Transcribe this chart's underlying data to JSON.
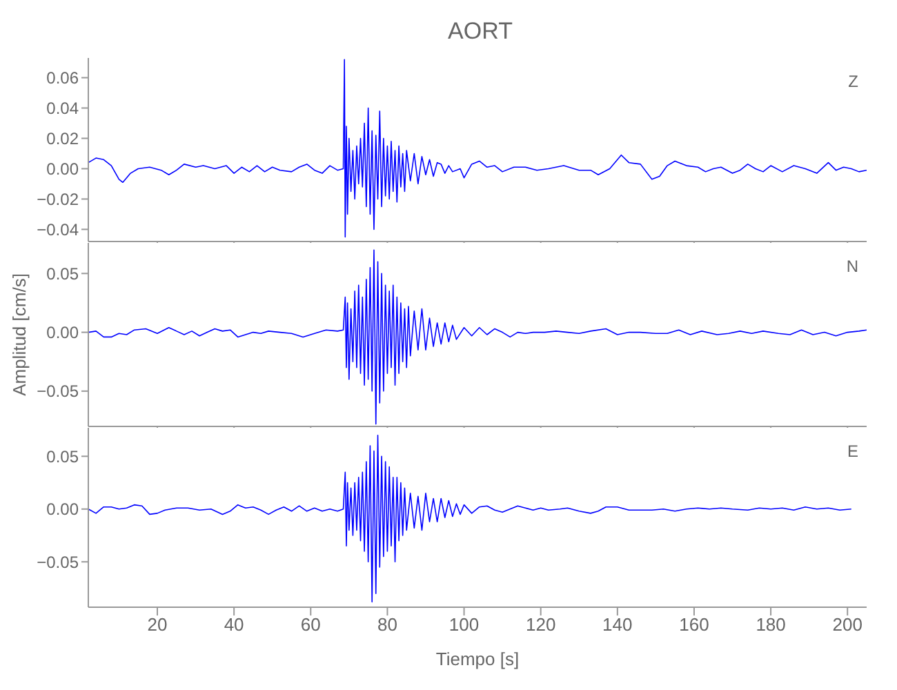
{
  "chart_data": [
    {
      "type": "line",
      "title": "AORT",
      "annotations": [
        "Z"
      ],
      "color": "#0000ff",
      "xlim": [
        2,
        205
      ],
      "xticks": [
        20,
        40,
        60,
        80,
        100,
        120,
        140,
        160,
        180,
        200
      ],
      "ylim": [
        -0.048,
        0.073
      ],
      "yticks": [
        {
          "value": -0.04,
          "label": "−0.04"
        },
        {
          "value": -0.02,
          "label": "−0.02"
        },
        {
          "value": 0,
          "label": "0.00"
        },
        {
          "value": 0.02,
          "label": "0.02"
        },
        {
          "value": 0.04,
          "label": "0.04"
        },
        {
          "value": 0.06,
          "label": "0.06"
        }
      ],
      "tick_labels": "y",
      "grid": false,
      "x": [
        2,
        4,
        6,
        8,
        10,
        11,
        13,
        15,
        18,
        21,
        23,
        25,
        27,
        30,
        32,
        35,
        38,
        40,
        42,
        44,
        46,
        48,
        50,
        52,
        55,
        57,
        59,
        61,
        63,
        65,
        67,
        68.5,
        68.8,
        69,
        69.3,
        69.6,
        70,
        70.5,
        71,
        71.5,
        72,
        72.5,
        73,
        73.5,
        74,
        74.5,
        75,
        75.5,
        76,
        76.5,
        77,
        77.5,
        78,
        78.5,
        79,
        79.5,
        80,
        80.5,
        81,
        81.5,
        82,
        82.5,
        83,
        83.5,
        84,
        84.5,
        85,
        86,
        87,
        88,
        89,
        90,
        91,
        92,
        93,
        94,
        95,
        96,
        97,
        99,
        100,
        102,
        104,
        106,
        108,
        110,
        113,
        116,
        119,
        122,
        126,
        130,
        133,
        135,
        138,
        141,
        143,
        146,
        149,
        151,
        153,
        155,
        158,
        161,
        163,
        165,
        167,
        170,
        172,
        174,
        176,
        178,
        180,
        183,
        186,
        189,
        192,
        195,
        197,
        199,
        201,
        203,
        205
      ],
      "values": [
        0.004,
        0.007,
        0.006,
        0.002,
        -0.007,
        -0.009,
        -0.003,
        0.0,
        0.001,
        -0.001,
        -0.004,
        -0.001,
        0.003,
        0.001,
        0.002,
        0.0,
        0.002,
        -0.003,
        0.001,
        -0.002,
        0.002,
        -0.002,
        0.001,
        -0.001,
        -0.002,
        0.001,
        0.003,
        -0.001,
        -0.003,
        0.002,
        -0.001,
        0.0,
        0.072,
        -0.045,
        0.028,
        -0.03,
        0.02,
        -0.015,
        0.012,
        -0.02,
        0.015,
        -0.01,
        0.02,
        -0.012,
        0.03,
        -0.025,
        0.04,
        -0.03,
        0.025,
        -0.04,
        0.022,
        -0.02,
        0.038,
        -0.025,
        0.02,
        -0.018,
        0.015,
        -0.02,
        0.018,
        -0.015,
        0.012,
        -0.022,
        0.015,
        -0.012,
        0.01,
        -0.015,
        0.012,
        -0.008,
        0.01,
        -0.01,
        0.008,
        -0.004,
        0.006,
        -0.005,
        0.004,
        0.003,
        -0.003,
        0.002,
        -0.002,
        0.0,
        -0.006,
        0.003,
        0.005,
        0.001,
        0.002,
        -0.002,
        0.001,
        0.001,
        -0.001,
        0.0,
        0.002,
        -0.001,
        -0.001,
        -0.004,
        0.0,
        0.009,
        0.004,
        0.003,
        -0.007,
        -0.005,
        0.002,
        0.005,
        0.002,
        0.001,
        -0.002,
        0.0,
        0.001,
        -0.003,
        -0.001,
        0.003,
        0.0,
        -0.002,
        0.002,
        -0.002,
        0.002,
        0.0,
        -0.003,
        0.004,
        -0.001,
        0.001,
        0.0,
        -0.002,
        -0.001
      ]
    },
    {
      "type": "line",
      "ylabel": "Amplitud [cm/s]",
      "annotations": [
        "N"
      ],
      "color": "#0000ff",
      "xlim": [
        2,
        205
      ],
      "xticks": [
        20,
        40,
        60,
        80,
        100,
        120,
        140,
        160,
        180,
        200
      ],
      "ylim": [
        -0.08,
        0.076
      ],
      "yticks": [
        {
          "value": -0.05,
          "label": "−0.05"
        },
        {
          "value": 0,
          "label": "0.00"
        },
        {
          "value": 0.05,
          "label": "0.05"
        }
      ],
      "tick_labels": "y",
      "grid": false,
      "x": [
        2,
        4,
        6,
        8,
        10,
        12,
        14,
        17,
        20,
        23,
        25,
        27,
        29,
        31,
        33,
        35,
        37,
        39,
        41,
        43,
        45,
        47,
        49,
        52,
        55,
        58,
        61,
        64,
        67,
        68.5,
        69,
        69.3,
        69.6,
        70,
        70.5,
        71,
        71.5,
        72,
        72.5,
        73,
        73.5,
        74,
        74.5,
        75,
        75.5,
        76,
        76.5,
        77,
        77.5,
        78,
        78.5,
        79,
        79.5,
        80,
        80.5,
        81,
        81.5,
        82,
        82.5,
        83,
        83.5,
        84,
        84.5,
        85,
        85.5,
        86,
        87,
        88,
        89,
        90,
        91,
        92,
        93,
        94,
        95,
        96,
        97,
        98,
        100,
        102,
        104,
        106,
        108,
        110,
        112,
        114,
        116,
        118,
        121,
        124,
        127,
        130,
        133,
        137,
        140,
        143,
        146,
        150,
        153,
        156,
        159,
        162,
        166,
        169,
        172,
        175,
        178,
        182,
        185,
        188,
        191,
        194,
        197,
        200,
        203,
        205
      ],
      "values": [
        0.0,
        0.001,
        -0.004,
        -0.004,
        -0.001,
        -0.002,
        0.002,
        0.003,
        -0.001,
        0.004,
        0.001,
        -0.002,
        0.001,
        -0.003,
        0.0,
        0.003,
        0.001,
        0.002,
        -0.004,
        -0.002,
        0.0,
        -0.001,
        0.001,
        0.0,
        -0.001,
        -0.004,
        -0.001,
        0.002,
        0.001,
        0.002,
        0.03,
        -0.03,
        0.025,
        -0.04,
        0.02,
        -0.025,
        0.035,
        -0.03,
        0.04,
        -0.035,
        0.03,
        -0.045,
        0.045,
        -0.04,
        0.055,
        -0.05,
        0.07,
        -0.078,
        0.06,
        -0.06,
        0.05,
        -0.05,
        0.04,
        -0.035,
        0.035,
        -0.03,
        0.04,
        -0.045,
        0.03,
        -0.035,
        0.025,
        -0.025,
        0.02,
        -0.03,
        0.022,
        -0.02,
        0.018,
        -0.015,
        0.02,
        -0.015,
        0.012,
        -0.012,
        0.008,
        -0.01,
        0.008,
        -0.008,
        0.006,
        -0.006,
        0.004,
        -0.003,
        0.004,
        -0.002,
        0.003,
        0.0,
        -0.004,
        0.0,
        -0.001,
        0.0,
        0.0,
        0.001,
        0.0,
        -0.001,
        0.001,
        0.003,
        -0.002,
        0.0,
        0.0,
        -0.001,
        -0.001,
        0.002,
        -0.002,
        0.001,
        -0.002,
        -0.001,
        0.001,
        -0.001,
        0.001,
        -0.001,
        -0.002,
        0.002,
        -0.002,
        0.0,
        -0.003,
        0.0,
        0.001,
        0.002
      ]
    },
    {
      "type": "line",
      "xlabel": "Tiempo [s]",
      "annotations": [
        "E"
      ],
      "color": "#0000ff",
      "xlim": [
        2,
        205
      ],
      "xticks": [
        20,
        40,
        60,
        80,
        100,
        120,
        140,
        160,
        180,
        200
      ],
      "ylim": [
        -0.093,
        0.077
      ],
      "yticks": [
        {
          "value": -0.05,
          "label": "−0.05"
        },
        {
          "value": 0,
          "label": "0.00"
        },
        {
          "value": 0.05,
          "label": "0.05"
        }
      ],
      "grid": false,
      "x": [
        2,
        4,
        6,
        8,
        10,
        12,
        14,
        16,
        18,
        20,
        22,
        25,
        28,
        31,
        34,
        37,
        39,
        41,
        43,
        45,
        47,
        49,
        51,
        53,
        55,
        57,
        59,
        61,
        63,
        65,
        67,
        68.5,
        69,
        69.3,
        69.6,
        70,
        70.5,
        71,
        71.5,
        72,
        72.5,
        73,
        73.5,
        74,
        74.5,
        75,
        75.5,
        76,
        76.5,
        77,
        77.5,
        78,
        78.5,
        79,
        79.5,
        80,
        80.5,
        81,
        81.5,
        82,
        82.5,
        83,
        83.5,
        84,
        84.5,
        85,
        86,
        87,
        88,
        89,
        90,
        91,
        92,
        93,
        94,
        95,
        96,
        97,
        98,
        99,
        100,
        102,
        104,
        106,
        108,
        110,
        112,
        114,
        116,
        118,
        120,
        122,
        125,
        127,
        130,
        133,
        135,
        137,
        140,
        143,
        146,
        149,
        152,
        155,
        158,
        161,
        164,
        167,
        170,
        174,
        177,
        180,
        183,
        186,
        189,
        192,
        195,
        198,
        201
      ],
      "values": [
        0.0,
        -0.004,
        0.002,
        0.002,
        0.0,
        0.001,
        0.004,
        0.003,
        -0.005,
        -0.004,
        -0.001,
        0.001,
        0.001,
        -0.001,
        0.0,
        -0.005,
        -0.002,
        0.004,
        0.001,
        0.002,
        -0.001,
        -0.005,
        -0.001,
        0.002,
        -0.002,
        0.003,
        -0.002,
        0.001,
        -0.002,
        0.0,
        -0.002,
        0.0,
        0.035,
        -0.035,
        0.025,
        -0.02,
        0.02,
        -0.025,
        0.025,
        -0.02,
        0.03,
        -0.03,
        0.035,
        -0.04,
        0.045,
        -0.05,
        0.06,
        -0.088,
        0.055,
        -0.08,
        0.07,
        -0.055,
        0.05,
        -0.045,
        0.045,
        -0.04,
        0.04,
        -0.035,
        0.03,
        -0.05,
        0.03,
        -0.03,
        0.025,
        -0.025,
        0.02,
        -0.02,
        0.015,
        -0.018,
        0.012,
        -0.02,
        0.015,
        -0.012,
        0.01,
        -0.012,
        0.01,
        -0.008,
        0.008,
        -0.007,
        0.005,
        -0.005,
        0.004,
        -0.004,
        0.002,
        0.003,
        -0.001,
        -0.003,
        0.0,
        0.003,
        0.001,
        -0.001,
        0.001,
        -0.001,
        0.0,
        0.001,
        -0.002,
        -0.004,
        -0.002,
        0.002,
        0.002,
        -0.001,
        -0.001,
        -0.001,
        0.0,
        -0.002,
        0.0,
        0.001,
        0.0,
        0.001,
        0.0,
        -0.001,
        0.001,
        0.0,
        0.001,
        -0.001,
        0.002,
        0.0,
        0.001,
        -0.001,
        0.0
      ]
    }
  ]
}
